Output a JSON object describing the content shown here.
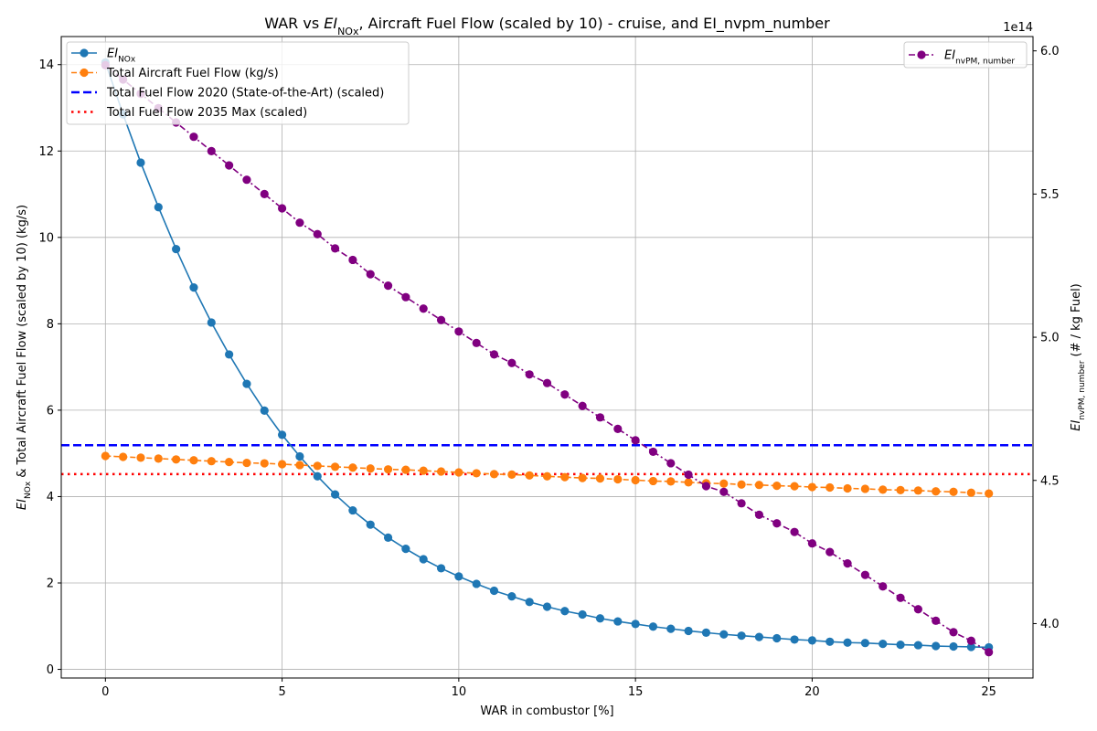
{
  "chart_data": {
    "type": "line",
    "title_parts": [
      "WAR vs ",
      "EI",
      "NOx",
      ", Aircraft Fuel Flow (scaled by 10) - cruise, and EI_nvpm_number"
    ],
    "xlabel": "WAR in combustor [%]",
    "ylabel_left_parts": [
      "EI",
      "NOx",
      " & Total Aircraft Fuel Flow (scaled by 10) (kg/s)"
    ],
    "ylabel_right_parts": [
      "EI",
      "nvPM, number",
      " (# / kg Fuel)"
    ],
    "right_axis_offset_text": "1e14",
    "xlim": [
      -1.25,
      26.25
    ],
    "ylim_left": [
      -0.2,
      14.65
    ],
    "ylim_right": [
      3.81,
      6.05
    ],
    "x_ticks": [
      0,
      5,
      10,
      15,
      20,
      25
    ],
    "y_left_ticks": [
      0,
      2,
      4,
      6,
      8,
      10,
      12,
      14
    ],
    "y_right_ticks": [
      {
        "value": 4.0,
        "label": "4.0"
      },
      {
        "value": 4.5,
        "label": "4.5"
      },
      {
        "value": 5.0,
        "label": "5.0"
      },
      {
        "value": 5.5,
        "label": "5.5"
      },
      {
        "value": 6.0,
        "label": "6.0"
      }
    ],
    "grid": true,
    "x": [
      0,
      0.5,
      1,
      1.5,
      2,
      2.5,
      3,
      3.5,
      4,
      4.5,
      5,
      5.5,
      6,
      6.5,
      7,
      7.5,
      8,
      8.5,
      9,
      9.5,
      10,
      10.5,
      11,
      11.5,
      12,
      12.5,
      13,
      13.5,
      14,
      14.5,
      15,
      15.5,
      16,
      16.5,
      17,
      17.5,
      18,
      18.5,
      19,
      19.5,
      20,
      20.5,
      21,
      21.5,
      22,
      22.5,
      23,
      23.5,
      24,
      24.5,
      25
    ],
    "series": [
      {
        "key": "einox",
        "axis": "left",
        "color": "#1f77b4",
        "style": "solid",
        "legend_parts": [
          "EI",
          "NOx"
        ],
        "values": [
          14.05,
          12.85,
          11.73,
          10.7,
          9.73,
          8.84,
          8.03,
          7.29,
          6.61,
          5.99,
          5.43,
          4.93,
          4.47,
          4.05,
          3.68,
          3.35,
          3.05,
          2.79,
          2.55,
          2.34,
          2.15,
          1.98,
          1.82,
          1.69,
          1.56,
          1.45,
          1.35,
          1.27,
          1.18,
          1.11,
          1.05,
          0.99,
          0.94,
          0.89,
          0.85,
          0.81,
          0.78,
          0.75,
          0.72,
          0.69,
          0.67,
          0.64,
          0.62,
          0.61,
          0.59,
          0.57,
          0.56,
          0.54,
          0.53,
          0.52,
          0.51
        ]
      },
      {
        "key": "fuel",
        "axis": "left",
        "color": "#ff7f0e",
        "style": "dashed",
        "legend_parts": [
          "Total Aircraft Fuel Flow (kg/s)"
        ],
        "values": [
          4.94,
          4.92,
          4.9,
          4.88,
          4.86,
          4.84,
          4.82,
          4.8,
          4.78,
          4.77,
          4.75,
          4.73,
          4.71,
          4.69,
          4.67,
          4.65,
          4.63,
          4.62,
          4.6,
          4.58,
          4.56,
          4.54,
          4.52,
          4.51,
          4.49,
          4.47,
          4.45,
          4.43,
          4.42,
          4.4,
          4.38,
          4.36,
          4.35,
          4.33,
          4.31,
          4.3,
          4.28,
          4.27,
          4.25,
          4.24,
          4.22,
          4.21,
          4.19,
          4.18,
          4.16,
          4.15,
          4.14,
          4.12,
          4.11,
          4.09,
          4.07
        ]
      },
      {
        "key": "nvpm",
        "axis": "right",
        "color": "#800080",
        "style": "dashdot",
        "legend_parts": [
          "EI",
          "nvPM, number"
        ],
        "values": [
          5.95,
          5.9,
          5.85,
          5.8,
          5.75,
          5.7,
          5.65,
          5.6,
          5.55,
          5.5,
          5.45,
          5.4,
          5.36,
          5.31,
          5.27,
          5.22,
          5.18,
          5.14,
          5.1,
          5.06,
          5.02,
          4.98,
          4.94,
          4.91,
          4.87,
          4.84,
          4.8,
          4.76,
          4.72,
          4.68,
          4.64,
          4.6,
          4.56,
          4.52,
          4.48,
          4.46,
          4.42,
          4.38,
          4.35,
          4.32,
          4.28,
          4.25,
          4.21,
          4.17,
          4.13,
          4.09,
          4.05,
          4.01,
          3.97,
          3.94,
          3.9
        ]
      }
    ],
    "hlines": [
      {
        "key": "fuel2020",
        "value": 5.19,
        "color": "#0000ff",
        "style": "dashed",
        "label": "Total Fuel Flow 2020 (State-of-the-Art) (scaled)"
      },
      {
        "key": "fuel2035",
        "value": 4.52,
        "color": "#ff0000",
        "style": "dotted",
        "label": "Total Fuel Flow 2035 Max (scaled)"
      }
    ],
    "legend_left_position": "upper left",
    "legend_right_position": "upper right"
  }
}
